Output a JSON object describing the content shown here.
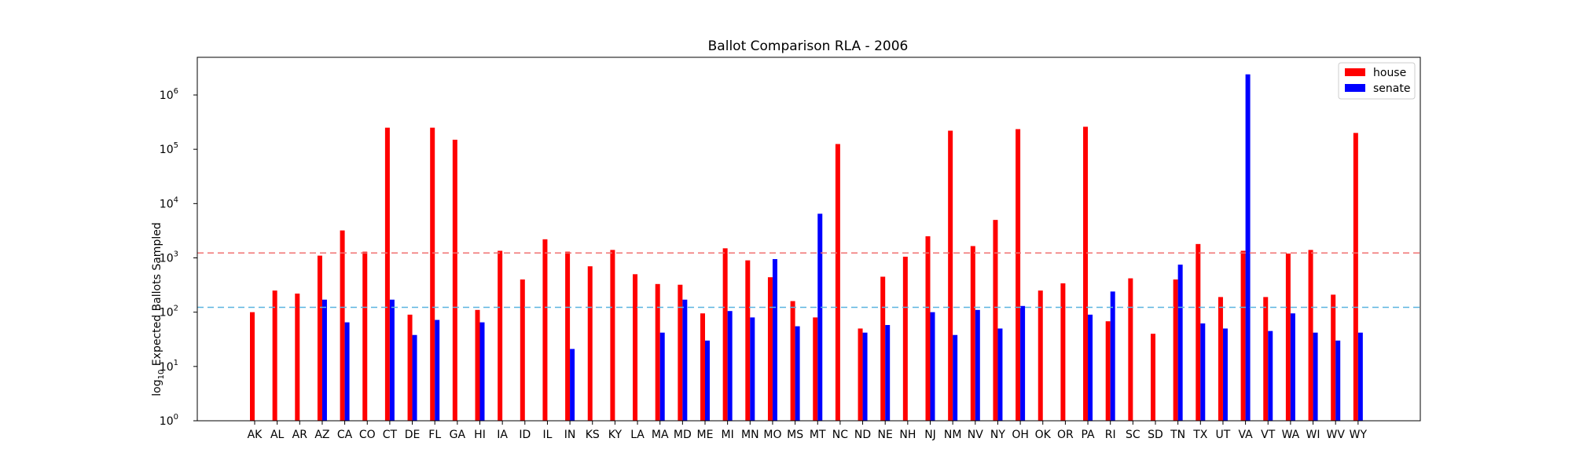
{
  "chart_data": {
    "type": "bar",
    "title": "Ballot Comparison RLA - 2006",
    "xlabel": "",
    "ylabel_prefix": "log",
    "ylabel_sub": "10",
    "ylabel_rest": " Expected Ballots Sampled",
    "yscale": "log",
    "ylim": [
      1,
      5000000
    ],
    "yticks": [
      {
        "exp": "0",
        "value": 1
      },
      {
        "exp": "1",
        "value": 10
      },
      {
        "exp": "2",
        "value": 100
      },
      {
        "exp": "3",
        "value": 1000
      },
      {
        "exp": "4",
        "value": 10000
      },
      {
        "exp": "5",
        "value": 100000
      },
      {
        "exp": "6",
        "value": 1000000
      }
    ],
    "ytick_base": "10",
    "categories": [
      "AK",
      "AL",
      "AR",
      "AZ",
      "CA",
      "CO",
      "CT",
      "DE",
      "FL",
      "GA",
      "HI",
      "IA",
      "ID",
      "IL",
      "IN",
      "KS",
      "KY",
      "LA",
      "MA",
      "MD",
      "ME",
      "MI",
      "MN",
      "MO",
      "MS",
      "MT",
      "NC",
      "ND",
      "NE",
      "NH",
      "NJ",
      "NM",
      "NV",
      "NY",
      "OH",
      "OK",
      "OR",
      "PA",
      "RI",
      "SC",
      "SD",
      "TN",
      "TX",
      "UT",
      "VA",
      "VT",
      "WA",
      "WI",
      "WV",
      "WY"
    ],
    "series": [
      {
        "name": "house",
        "color": "#ff0000",
        "values": [
          100,
          250,
          220,
          1100,
          3200,
          1300,
          250000,
          90,
          250000,
          150000,
          110,
          1350,
          400,
          2200,
          1300,
          700,
          1400,
          500,
          330,
          320,
          95,
          1500,
          900,
          440,
          160,
          80,
          125000,
          50,
          450,
          1050,
          2500,
          220000,
          1650,
          5000,
          235000,
          250,
          340,
          260000,
          68,
          420,
          40,
          400,
          1800,
          190,
          1350,
          190,
          1200,
          1400,
          210,
          200000
        ]
      },
      {
        "name": "senate",
        "color": "#0000ff",
        "values": [
          null,
          null,
          null,
          170,
          65,
          null,
          170,
          38,
          72,
          null,
          65,
          null,
          null,
          null,
          21,
          null,
          null,
          null,
          42,
          170,
          30,
          105,
          80,
          950,
          55,
          6500,
          null,
          42,
          58,
          null,
          100,
          38,
          110,
          50,
          130,
          null,
          null,
          90,
          240,
          null,
          null,
          750,
          62,
          50,
          2400000,
          45,
          95,
          42,
          30,
          42
        ]
      }
    ],
    "hlines": [
      {
        "value": 1230,
        "color": "#f07070"
      },
      {
        "value": 123,
        "color": "#5ab4e0"
      }
    ],
    "legend": "upper-right",
    "grid": false
  }
}
